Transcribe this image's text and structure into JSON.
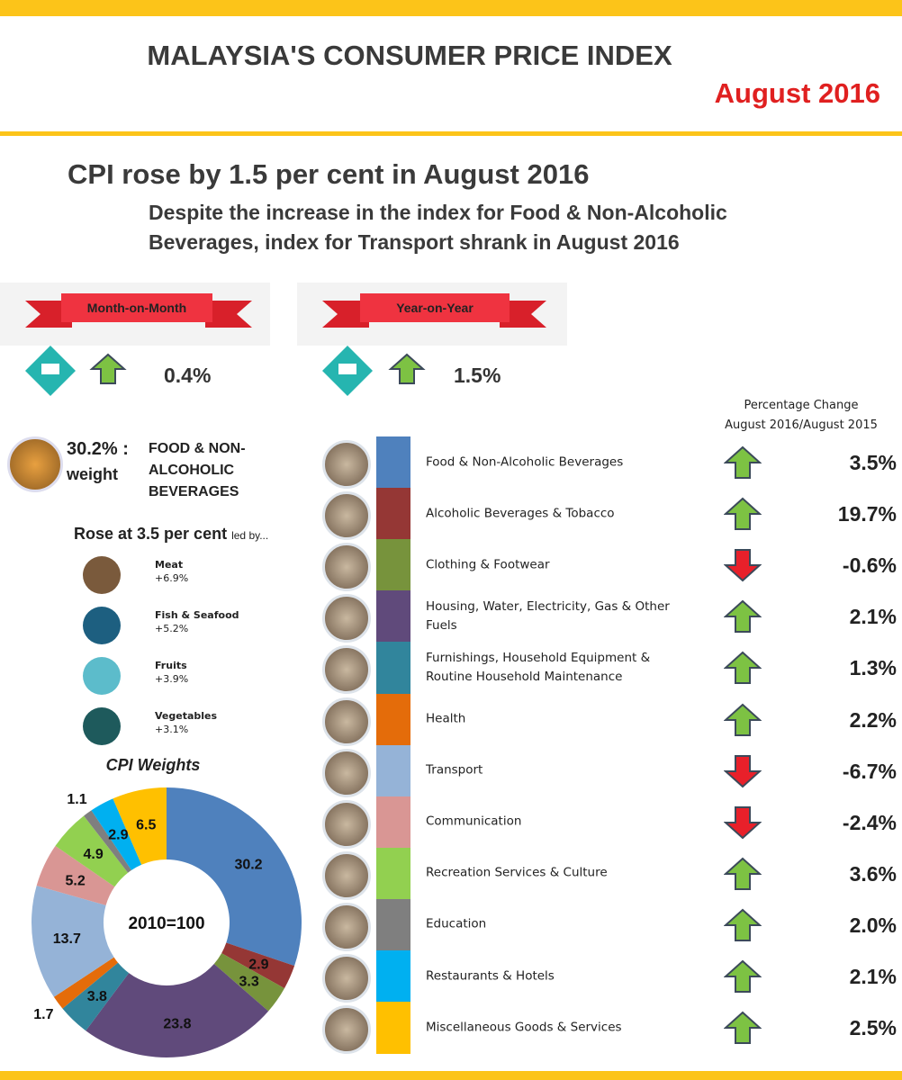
{
  "header": {
    "title": "MALAYSIA'S CONSUMER PRICE INDEX",
    "date": "August 2016"
  },
  "headline": "CPI rose by 1.5 per cent in August 2016",
  "subheadline": "Despite the increase in the index for Food & Non-Alcoholic Beverages, index for Transport shrank in August 2016",
  "month_on_month": {
    "label": "Month-on-Month",
    "value": "0.4%"
  },
  "year_on_year": {
    "label": "Year-on-Year",
    "value": "1.5%"
  },
  "food": {
    "weight": "30.2% :",
    "weight_label": "weight",
    "name": "FOOD & NON-ALCOHOLIC BEVERAGES",
    "rose": "Rose at 3.5 per cent",
    "led_by": "led by...",
    "items": [
      {
        "name": "Meat",
        "change": "+6.9%",
        "color": "#7a5a3c"
      },
      {
        "name": "Fish & Seafood",
        "change": "+5.2%",
        "color": "#1d5f80"
      },
      {
        "name": "Fruits",
        "change": "+3.9%",
        "color": "#5cbccb"
      },
      {
        "name": "Vegetables",
        "change": "+3.1%",
        "color": "#1e5a5c"
      }
    ]
  },
  "change_header": [
    "Percentage Change",
    "August 2016/August 2015"
  ],
  "changes": [
    {
      "value": "3.5%",
      "direction": "up"
    },
    {
      "value": "19.7%",
      "direction": "up"
    },
    {
      "value": "-0.6%",
      "direction": "down"
    },
    {
      "value": "2.1%",
      "direction": "up"
    },
    {
      "value": "1.3%",
      "direction": "up"
    },
    {
      "value": "2.2%",
      "direction": "up"
    },
    {
      "value": "-6.7%",
      "direction": "down"
    },
    {
      "value": "-2.4%",
      "direction": "down"
    },
    {
      "value": "3.6%",
      "direction": "up"
    },
    {
      "value": "2.0%",
      "direction": "up"
    },
    {
      "value": "2.1%",
      "direction": "up"
    },
    {
      "value": "2.5%",
      "direction": "up"
    }
  ],
  "chart_data": {
    "type": "donut",
    "title": "CPI Weights",
    "center_label": "2010=100",
    "categories": [
      "Food & Non-Alcoholic Beverages",
      "Alcoholic Beverages & Tobacco",
      "Clothing & Footwear",
      "Housing, Water, Electricity, Gas & Other Fuels",
      "Furnishings, Household Equipment & Routine Household Maintenance",
      "Health",
      "Transport",
      "Communication",
      "Recreation Services & Culture",
      "Education",
      "Restaurants & Hotels",
      "Miscellaneous Goods & Services"
    ],
    "values": [
      30.2,
      2.9,
      3.3,
      23.8,
      3.8,
      1.7,
      13.7,
      5.2,
      4.9,
      1.1,
      2.9,
      6.5
    ],
    "colors": [
      "#4f81bd",
      "#953735",
      "#77933c",
      "#604a7b",
      "#31859c",
      "#e46c0a",
      "#95b3d7",
      "#d99694",
      "#92d050",
      "#7f7f7f",
      "#00b0f0",
      "#ffc000"
    ]
  }
}
